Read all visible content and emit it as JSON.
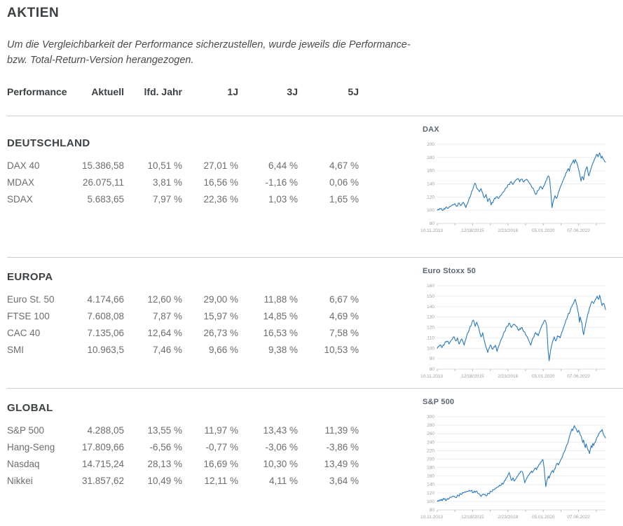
{
  "title": "AKTIEN",
  "disclaimer": "Um die Vergleichbarkeit der Performance sicherzustellen, wurde jeweils die Performance- bzw. Total-Return-Version herangezogen.",
  "table_headers": [
    "Performance",
    "Aktuell",
    "lfd. Jahr",
    "1J",
    "3J",
    "5J"
  ],
  "colors": {
    "line": "#2a79bb",
    "heading_text": "#3c4043",
    "body_text": "#6d6d6d",
    "divider": "#cdcdcd",
    "chart_title_text": "#5a6672",
    "axis_label_text": "#9e9e9e",
    "gridline": "#ededed"
  },
  "sections": [
    {
      "heading": "DEUTSCHLAND",
      "chart_ref": 0,
      "rows": [
        {
          "name": "DAX 40",
          "values": [
            "15.386,58",
            "10,51 %",
            "27,01 %",
            "6,44 %",
            "4,67 %"
          ]
        },
        {
          "name": "MDAX",
          "values": [
            "26.075,11",
            "3,81 %",
            "16,56 %",
            "-1,16 %",
            "0,06 %"
          ]
        },
        {
          "name": "SDAX",
          "values": [
            "5.683,65",
            "7,97 %",
            "22,36 %",
            "1,03 %",
            "1,65 %"
          ]
        }
      ]
    },
    {
      "heading": "EUROPA",
      "chart_ref": 1,
      "rows": [
        {
          "name": "Euro St. 50",
          "values": [
            "4.174,66",
            "12,60 %",
            "29,00 %",
            "11,88 %",
            "6,67 %"
          ]
        },
        {
          "name": "FTSE 100",
          "values": [
            "7.608,08",
            "7,87 %",
            "15,97 %",
            "14,85 %",
            "4,69 %"
          ]
        },
        {
          "name": "CAC 40",
          "values": [
            "7.135,06",
            "12,64 %",
            "26,73 %",
            "16,53 %",
            "7,58 %"
          ]
        },
        {
          "name": "SMI",
          "values": [
            "10.963,5",
            "7,46 %",
            "9,66 %",
            "9,38 %",
            "10,53 %"
          ]
        }
      ]
    },
    {
      "heading": "GLOBAL",
      "chart_ref": 2,
      "rows": [
        {
          "name": "S&P 500",
          "values": [
            "4.288,05",
            "13,55 %",
            "11,97 %",
            "13,43 %",
            "11,39 %"
          ]
        },
        {
          "name": "Hang-Seng",
          "values": [
            "17.809,66",
            "-6,56 %",
            "-0,77 %",
            "-3,06 %",
            "-3,86 %"
          ]
        },
        {
          "name": "Nasdaq",
          "values": [
            "14.715,24",
            "28,13 %",
            "16,69 %",
            "10,30 %",
            "13,49 %"
          ]
        },
        {
          "name": "Nikkei",
          "values": [
            "31.857,62",
            "10,49 %",
            "12,11 %",
            "4,11 %",
            "3,64 %"
          ]
        }
      ]
    }
  ],
  "chart_data": [
    {
      "type": "line",
      "title": "DAX",
      "ylabel": "",
      "xlabel": "",
      "ylim": [
        80,
        200
      ],
      "y_ticks": [
        200,
        180,
        160,
        140,
        120,
        100,
        80
      ],
      "x_labels": [
        "10.11.2013",
        "12/18/2015",
        "2/23/2018",
        "05.01.2020",
        "07.06.2022"
      ],
      "grid": true,
      "legend": "none",
      "line_color": "#2a79bb",
      "points": [
        [
          0,
          100
        ],
        [
          0.02,
          102
        ],
        [
          0.035,
          100
        ],
        [
          0.05,
          104
        ],
        [
          0.065,
          103
        ],
        [
          0.08,
          106
        ],
        [
          0.095,
          108
        ],
        [
          0.105,
          110
        ],
        [
          0.115,
          106
        ],
        [
          0.13,
          111
        ],
        [
          0.14,
          107
        ],
        [
          0.155,
          112
        ],
        [
          0.17,
          104
        ],
        [
          0.185,
          114
        ],
        [
          0.2,
          124
        ],
        [
          0.215,
          135
        ],
        [
          0.225,
          141
        ],
        [
          0.235,
          133
        ],
        [
          0.25,
          128
        ],
        [
          0.26,
          133
        ],
        [
          0.27,
          126
        ],
        [
          0.28,
          119
        ],
        [
          0.29,
          124
        ],
        [
          0.3,
          113
        ],
        [
          0.31,
          118
        ],
        [
          0.32,
          108
        ],
        [
          0.335,
          115
        ],
        [
          0.35,
          120
        ],
        [
          0.365,
          118
        ],
        [
          0.38,
          123
        ],
        [
          0.395,
          128
        ],
        [
          0.41,
          134
        ],
        [
          0.425,
          139
        ],
        [
          0.44,
          143
        ],
        [
          0.45,
          139
        ],
        [
          0.465,
          145
        ],
        [
          0.48,
          148
        ],
        [
          0.49,
          143
        ],
        [
          0.5,
          147
        ],
        [
          0.515,
          143
        ],
        [
          0.53,
          147
        ],
        [
          0.545,
          142
        ],
        [
          0.56,
          136
        ],
        [
          0.575,
          130
        ],
        [
          0.585,
          124
        ],
        [
          0.6,
          130
        ],
        [
          0.615,
          136
        ],
        [
          0.625,
          132
        ],
        [
          0.64,
          140
        ],
        [
          0.65,
          146
        ],
        [
          0.66,
          152
        ],
        [
          0.668,
          147
        ],
        [
          0.675,
          128
        ],
        [
          0.682,
          104
        ],
        [
          0.69,
          114
        ],
        [
          0.7,
          122
        ],
        [
          0.71,
          118
        ],
        [
          0.72,
          127
        ],
        [
          0.73,
          134
        ],
        [
          0.74,
          140
        ],
        [
          0.75,
          146
        ],
        [
          0.76,
          152
        ],
        [
          0.77,
          158
        ],
        [
          0.78,
          163
        ],
        [
          0.785,
          159
        ],
        [
          0.79,
          166
        ],
        [
          0.8,
          171
        ],
        [
          0.81,
          176
        ],
        [
          0.815,
          171
        ],
        [
          0.82,
          177
        ],
        [
          0.83,
          172
        ],
        [
          0.84,
          162
        ],
        [
          0.85,
          150
        ],
        [
          0.855,
          144
        ],
        [
          0.86,
          151
        ],
        [
          0.87,
          146
        ],
        [
          0.875,
          154
        ],
        [
          0.88,
          160
        ],
        [
          0.89,
          166
        ],
        [
          0.895,
          159
        ],
        [
          0.9,
          152
        ],
        [
          0.91,
          160
        ],
        [
          0.92,
          168
        ],
        [
          0.93,
          174
        ],
        [
          0.94,
          180
        ],
        [
          0.95,
          185
        ],
        [
          0.955,
          181
        ],
        [
          0.96,
          184
        ],
        [
          0.965,
          187
        ],
        [
          0.97,
          183
        ],
        [
          0.975,
          179
        ],
        [
          0.98,
          182
        ],
        [
          0.99,
          177
        ],
        [
          1,
          173
        ]
      ]
    },
    {
      "type": "line",
      "title": "Euro Stoxx 50",
      "ylabel": "",
      "xlabel": "",
      "ylim": [
        80,
        160
      ],
      "y_ticks": [
        160,
        150,
        140,
        130,
        120,
        110,
        100,
        90,
        80
      ],
      "x_labels": [
        "10.11.2013",
        "12/18/2015",
        "2/23/2018",
        "05.01.2020",
        "07.06.2022"
      ],
      "grid": true,
      "legend": "none",
      "line_color": "#2a79bb",
      "points": [
        [
          0,
          100
        ],
        [
          0.015,
          103
        ],
        [
          0.03,
          101
        ],
        [
          0.045,
          105
        ],
        [
          0.06,
          107
        ],
        [
          0.07,
          104
        ],
        [
          0.085,
          108
        ],
        [
          0.1,
          111
        ],
        [
          0.11,
          107
        ],
        [
          0.12,
          110
        ],
        [
          0.13,
          104
        ],
        [
          0.145,
          109
        ],
        [
          0.16,
          103
        ],
        [
          0.175,
          112
        ],
        [
          0.19,
          118
        ],
        [
          0.205,
          124
        ],
        [
          0.215,
          127
        ],
        [
          0.225,
          121
        ],
        [
          0.235,
          125
        ],
        [
          0.25,
          117
        ],
        [
          0.26,
          111
        ],
        [
          0.27,
          115
        ],
        [
          0.28,
          107
        ],
        [
          0.29,
          101
        ],
        [
          0.3,
          96
        ],
        [
          0.315,
          103
        ],
        [
          0.33,
          99
        ],
        [
          0.345,
          103
        ],
        [
          0.355,
          97
        ],
        [
          0.37,
          104
        ],
        [
          0.385,
          110
        ],
        [
          0.4,
          116
        ],
        [
          0.415,
          121
        ],
        [
          0.43,
          124
        ],
        [
          0.44,
          120
        ],
        [
          0.455,
          123
        ],
        [
          0.47,
          121
        ],
        [
          0.485,
          117
        ],
        [
          0.5,
          120
        ],
        [
          0.515,
          116
        ],
        [
          0.53,
          112
        ],
        [
          0.545,
          107
        ],
        [
          0.555,
          103
        ],
        [
          0.57,
          110
        ],
        [
          0.585,
          115
        ],
        [
          0.6,
          112
        ],
        [
          0.61,
          117
        ],
        [
          0.62,
          121
        ],
        [
          0.63,
          124
        ],
        [
          0.64,
          127
        ],
        [
          0.65,
          122
        ],
        [
          0.658,
          100
        ],
        [
          0.665,
          88
        ],
        [
          0.675,
          99
        ],
        [
          0.685,
          106
        ],
        [
          0.695,
          111
        ],
        [
          0.705,
          107
        ],
        [
          0.715,
          112
        ],
        [
          0.73,
          110
        ],
        [
          0.745,
          117
        ],
        [
          0.76,
          124
        ],
        [
          0.775,
          131
        ],
        [
          0.79,
          136
        ],
        [
          0.8,
          140
        ],
        [
          0.81,
          143
        ],
        [
          0.82,
          147
        ],
        [
          0.83,
          141
        ],
        [
          0.84,
          133
        ],
        [
          0.845,
          125
        ],
        [
          0.85,
          130
        ],
        [
          0.86,
          124
        ],
        [
          0.865,
          117
        ],
        [
          0.87,
          113
        ],
        [
          0.88,
          121
        ],
        [
          0.89,
          129
        ],
        [
          0.9,
          135
        ],
        [
          0.91,
          141
        ],
        [
          0.92,
          145
        ],
        [
          0.93,
          143
        ],
        [
          0.94,
          147
        ],
        [
          0.95,
          150
        ],
        [
          0.96,
          147
        ],
        [
          0.965,
          151
        ],
        [
          0.97,
          148
        ],
        [
          0.975,
          144
        ],
        [
          0.98,
          141
        ],
        [
          0.99,
          143
        ],
        [
          1,
          137
        ]
      ]
    },
    {
      "type": "line",
      "title": "S&P 500",
      "ylabel": "",
      "xlabel": "",
      "ylim": [
        80,
        300
      ],
      "y_ticks": [
        300,
        280,
        260,
        240,
        220,
        200,
        180,
        160,
        140,
        120,
        100,
        80
      ],
      "x_labels": [
        "10.11.2013",
        "12/18/2015",
        "2/23/2018",
        "05.01.2020",
        "07.06.2022"
      ],
      "grid": true,
      "legend": "none",
      "line_color": "#2a79bb",
      "points": [
        [
          0,
          100
        ],
        [
          0.02,
          102
        ],
        [
          0.04,
          105
        ],
        [
          0.055,
          103
        ],
        [
          0.07,
          107
        ],
        [
          0.085,
          110
        ],
        [
          0.1,
          112
        ],
        [
          0.11,
          109
        ],
        [
          0.125,
          114
        ],
        [
          0.14,
          117
        ],
        [
          0.155,
          120
        ],
        [
          0.17,
          122
        ],
        [
          0.185,
          124
        ],
        [
          0.2,
          125
        ],
        [
          0.215,
          121
        ],
        [
          0.23,
          124
        ],
        [
          0.245,
          118
        ],
        [
          0.26,
          112
        ],
        [
          0.275,
          117
        ],
        [
          0.29,
          113
        ],
        [
          0.305,
          119
        ],
        [
          0.32,
          123
        ],
        [
          0.335,
          127
        ],
        [
          0.35,
          131
        ],
        [
          0.365,
          135
        ],
        [
          0.38,
          139
        ],
        [
          0.395,
          144
        ],
        [
          0.405,
          150
        ],
        [
          0.415,
          157
        ],
        [
          0.42,
          162
        ],
        [
          0.428,
          168
        ],
        [
          0.435,
          158
        ],
        [
          0.44,
          150
        ],
        [
          0.45,
          156
        ],
        [
          0.458,
          148
        ],
        [
          0.47,
          155
        ],
        [
          0.48,
          161
        ],
        [
          0.49,
          166
        ],
        [
          0.5,
          171
        ],
        [
          0.51,
          165
        ],
        [
          0.515,
          155
        ],
        [
          0.52,
          144
        ],
        [
          0.53,
          153
        ],
        [
          0.54,
          161
        ],
        [
          0.55,
          167
        ],
        [
          0.56,
          172
        ],
        [
          0.565,
          168
        ],
        [
          0.575,
          174
        ],
        [
          0.585,
          179
        ],
        [
          0.59,
          175
        ],
        [
          0.6,
          182
        ],
        [
          0.61,
          188
        ],
        [
          0.62,
          194
        ],
        [
          0.628,
          199
        ],
        [
          0.635,
          180
        ],
        [
          0.645,
          135
        ],
        [
          0.652,
          150
        ],
        [
          0.66,
          160
        ],
        [
          0.665,
          155
        ],
        [
          0.675,
          166
        ],
        [
          0.685,
          173
        ],
        [
          0.69,
          168
        ],
        [
          0.7,
          177
        ],
        [
          0.705,
          184
        ],
        [
          0.715,
          190
        ],
        [
          0.72,
          186
        ],
        [
          0.73,
          194
        ],
        [
          0.735,
          200
        ],
        [
          0.745,
          207
        ],
        [
          0.75,
          214
        ],
        [
          0.76,
          221
        ],
        [
          0.765,
          228
        ],
        [
          0.775,
          236
        ],
        [
          0.78,
          244
        ],
        [
          0.785,
          252
        ],
        [
          0.79,
          259
        ],
        [
          0.795,
          265
        ],
        [
          0.8,
          271
        ],
        [
          0.805,
          267
        ],
        [
          0.81,
          274
        ],
        [
          0.815,
          279
        ],
        [
          0.825,
          272
        ],
        [
          0.835,
          263
        ],
        [
          0.84,
          268
        ],
        [
          0.85,
          257
        ],
        [
          0.86,
          247
        ],
        [
          0.865,
          239
        ],
        [
          0.87,
          245
        ],
        [
          0.875,
          234
        ],
        [
          0.88,
          227
        ],
        [
          0.885,
          236
        ],
        [
          0.89,
          229
        ],
        [
          0.9,
          220
        ],
        [
          0.905,
          213
        ],
        [
          0.91,
          223
        ],
        [
          0.915,
          232
        ],
        [
          0.92,
          227
        ],
        [
          0.925,
          237
        ],
        [
          0.93,
          232
        ],
        [
          0.94,
          240
        ],
        [
          0.945,
          247
        ],
        [
          0.955,
          254
        ],
        [
          0.96,
          260
        ],
        [
          0.97,
          266
        ],
        [
          0.98,
          270
        ],
        [
          0.985,
          262
        ],
        [
          0.99,
          256
        ],
        [
          1,
          250
        ]
      ]
    }
  ]
}
